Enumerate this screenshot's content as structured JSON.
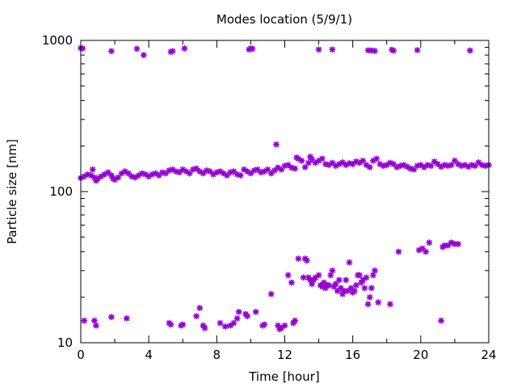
{
  "chart_data": {
    "type": "scatter",
    "title": "Modes location (5/9/1)",
    "xlabel": "Time [hour]",
    "ylabel": "Particle size [nm]",
    "xlim": [
      0,
      24
    ],
    "ylim": [
      10,
      1000
    ],
    "yscale": "log",
    "xticks": [
      0,
      4,
      8,
      12,
      16,
      20,
      24
    ],
    "yticks": [
      10,
      100,
      1000
    ],
    "xtick_labels": [
      "0",
      "4",
      "8",
      "12",
      "16",
      "20",
      "24"
    ],
    "ytick_labels": [
      "10",
      "100",
      "1000"
    ],
    "marker_color": "#9400d3",
    "grid": false,
    "series": [
      {
        "points": [
          [
            0.0,
            890
          ],
          [
            0.1,
            885
          ],
          [
            1.8,
            850
          ],
          [
            3.3,
            880
          ],
          [
            3.7,
            800
          ],
          [
            5.3,
            840
          ],
          [
            5.4,
            850
          ],
          [
            6.1,
            885
          ],
          [
            9.9,
            870
          ],
          [
            10.0,
            885
          ],
          [
            10.1,
            880
          ],
          [
            14.0,
            870
          ],
          [
            14.8,
            870
          ],
          [
            16.9,
            860
          ],
          [
            17.1,
            858
          ],
          [
            17.3,
            852
          ],
          [
            18.3,
            868
          ],
          [
            18.4,
            856
          ],
          [
            19.8,
            862
          ],
          [
            22.9,
            858
          ],
          [
            0.0,
            123
          ],
          [
            0.2,
            126
          ],
          [
            0.4,
            130
          ],
          [
            0.6,
            128
          ],
          [
            0.7,
            140
          ],
          [
            0.8,
            124
          ],
          [
            0.9,
            118
          ],
          [
            1.0,
            122
          ],
          [
            1.2,
            126
          ],
          [
            1.4,
            130
          ],
          [
            1.6,
            134
          ],
          [
            1.8,
            128
          ],
          [
            1.9,
            122
          ],
          [
            2.0,
            120
          ],
          [
            2.2,
            124
          ],
          [
            2.4,
            132
          ],
          [
            2.6,
            136
          ],
          [
            2.8,
            132
          ],
          [
            3.0,
            126
          ],
          [
            3.2,
            124
          ],
          [
            3.4,
            128
          ],
          [
            3.6,
            132
          ],
          [
            3.8,
            130
          ],
          [
            4.0,
            126
          ],
          [
            4.2,
            130
          ],
          [
            4.4,
            132
          ],
          [
            4.6,
            128
          ],
          [
            4.8,
            134
          ],
          [
            5.0,
            132
          ],
          [
            5.2,
            138
          ],
          [
            5.4,
            140
          ],
          [
            5.6,
            136
          ],
          [
            5.8,
            134
          ],
          [
            6.0,
            140
          ],
          [
            6.2,
            136
          ],
          [
            6.4,
            132
          ],
          [
            6.6,
            140
          ],
          [
            6.8,
            142
          ],
          [
            7.0,
            136
          ],
          [
            7.2,
            132
          ],
          [
            7.4,
            138
          ],
          [
            7.6,
            136
          ],
          [
            7.8,
            130
          ],
          [
            8.0,
            134
          ],
          [
            8.2,
            136
          ],
          [
            8.4,
            132
          ],
          [
            8.6,
            128
          ],
          [
            8.8,
            134
          ],
          [
            9.0,
            136
          ],
          [
            9.2,
            130
          ],
          [
            9.4,
            128
          ],
          [
            9.6,
            140
          ],
          [
            9.8,
            136
          ],
          [
            10.0,
            132
          ],
          [
            10.2,
            138
          ],
          [
            10.4,
            140
          ],
          [
            10.6,
            134
          ],
          [
            10.8,
            136
          ],
          [
            11.0,
            140
          ],
          [
            11.2,
            132
          ],
          [
            11.4,
            138
          ],
          [
            11.5,
            205
          ],
          [
            11.6,
            144
          ],
          [
            11.8,
            140
          ],
          [
            12.0,
            148
          ],
          [
            12.2,
            150
          ],
          [
            12.4,
            144
          ],
          [
            12.6,
            142
          ],
          [
            12.7,
            168
          ],
          [
            12.8,
            165
          ],
          [
            13.0,
            160
          ],
          [
            13.2,
            145
          ],
          [
            13.4,
            155
          ],
          [
            13.5,
            170
          ],
          [
            13.6,
            163
          ],
          [
            13.8,
            155
          ],
          [
            14.0,
            160
          ],
          [
            14.2,
            165
          ],
          [
            14.4,
            152
          ],
          [
            14.6,
            150
          ],
          [
            14.8,
            155
          ],
          [
            15.0,
            148
          ],
          [
            15.2,
            152
          ],
          [
            15.4,
            156
          ],
          [
            15.6,
            150
          ],
          [
            15.8,
            154
          ],
          [
            16.0,
            152
          ],
          [
            16.2,
            158
          ],
          [
            16.4,
            155
          ],
          [
            16.6,
            160
          ],
          [
            16.8,
            150
          ],
          [
            17.0,
            145
          ],
          [
            17.2,
            160
          ],
          [
            17.4,
            165
          ],
          [
            17.6,
            152
          ],
          [
            17.8,
            148
          ],
          [
            18.0,
            150
          ],
          [
            18.2,
            155
          ],
          [
            18.4,
            152
          ],
          [
            18.6,
            145
          ],
          [
            18.8,
            148
          ],
          [
            19.0,
            150
          ],
          [
            19.2,
            146
          ],
          [
            19.4,
            142
          ],
          [
            19.6,
            140
          ],
          [
            19.8,
            148
          ],
          [
            20.0,
            150
          ],
          [
            20.2,
            145
          ],
          [
            20.4,
            150
          ],
          [
            20.6,
            148
          ],
          [
            20.8,
            158
          ],
          [
            21.0,
            152
          ],
          [
            21.2,
            146
          ],
          [
            21.4,
            150
          ],
          [
            21.6,
            148
          ],
          [
            21.8,
            150
          ],
          [
            22.0,
            160
          ],
          [
            22.2,
            152
          ],
          [
            22.4,
            148
          ],
          [
            22.6,
            150
          ],
          [
            22.8,
            146
          ],
          [
            23.0,
            150
          ],
          [
            23.2,
            148
          ],
          [
            23.4,
            156
          ],
          [
            23.6,
            150
          ],
          [
            23.8,
            148
          ],
          [
            24.0,
            150
          ],
          [
            0.2,
            14
          ],
          [
            0.8,
            14
          ],
          [
            0.9,
            13
          ],
          [
            1.8,
            14.8
          ],
          [
            2.7,
            14.5
          ],
          [
            5.2,
            13.5
          ],
          [
            5.3,
            13.2
          ],
          [
            5.9,
            13
          ],
          [
            6.0,
            13.2
          ],
          [
            6.8,
            15
          ],
          [
            7.0,
            17
          ],
          [
            7.2,
            13
          ],
          [
            7.3,
            12.5
          ],
          [
            8.2,
            13.5
          ],
          [
            8.5,
            12.8
          ],
          [
            8.8,
            13
          ],
          [
            9.0,
            13.5
          ],
          [
            9.2,
            14.5
          ],
          [
            9.3,
            16
          ],
          [
            9.7,
            15.5
          ],
          [
            9.8,
            15
          ],
          [
            10.3,
            16
          ],
          [
            10.7,
            13
          ],
          [
            10.8,
            13.2
          ],
          [
            11.2,
            21
          ],
          [
            11.6,
            13
          ],
          [
            11.7,
            12.3
          ],
          [
            11.8,
            12.5
          ],
          [
            12.0,
            13
          ],
          [
            12.2,
            28
          ],
          [
            12.4,
            25
          ],
          [
            12.5,
            13.5
          ],
          [
            12.6,
            14
          ],
          [
            12.8,
            36
          ],
          [
            13.1,
            27
          ],
          [
            13.2,
            36
          ],
          [
            13.3,
            35
          ],
          [
            13.4,
            27
          ],
          [
            13.5,
            26
          ],
          [
            13.6,
            24.5
          ],
          [
            13.7,
            26
          ],
          [
            13.8,
            27
          ],
          [
            14.0,
            28
          ],
          [
            14.1,
            24
          ],
          [
            14.2,
            23.5
          ],
          [
            14.3,
            25
          ],
          [
            14.4,
            23
          ],
          [
            14.5,
            24
          ],
          [
            14.6,
            24
          ],
          [
            14.7,
            28
          ],
          [
            14.8,
            30
          ],
          [
            14.9,
            23.5
          ],
          [
            15.0,
            24.5
          ],
          [
            15.1,
            22
          ],
          [
            15.2,
            26
          ],
          [
            15.3,
            23
          ],
          [
            15.4,
            21
          ],
          [
            15.5,
            22
          ],
          [
            15.6,
            26
          ],
          [
            15.7,
            22
          ],
          [
            15.8,
            34
          ],
          [
            15.9,
            23
          ],
          [
            16.0,
            21.5
          ],
          [
            16.1,
            22
          ],
          [
            16.2,
            24
          ],
          [
            16.3,
            28
          ],
          [
            16.4,
            28
          ],
          [
            16.5,
            25
          ],
          [
            16.6,
            26
          ],
          [
            16.7,
            23
          ],
          [
            16.8,
            27
          ],
          [
            16.9,
            18
          ],
          [
            17.0,
            20
          ],
          [
            17.1,
            23
          ],
          [
            17.2,
            28
          ],
          [
            17.3,
            30
          ],
          [
            17.5,
            18.5
          ],
          [
            18.2,
            18
          ],
          [
            18.7,
            40
          ],
          [
            19.9,
            41
          ],
          [
            20.1,
            42
          ],
          [
            20.3,
            40
          ],
          [
            20.5,
            46
          ],
          [
            21.2,
            14
          ],
          [
            21.3,
            43
          ],
          [
            21.4,
            44
          ],
          [
            21.6,
            44
          ],
          [
            21.8,
            46
          ],
          [
            22.0,
            45
          ],
          [
            22.2,
            45
          ]
        ]
      }
    ]
  }
}
